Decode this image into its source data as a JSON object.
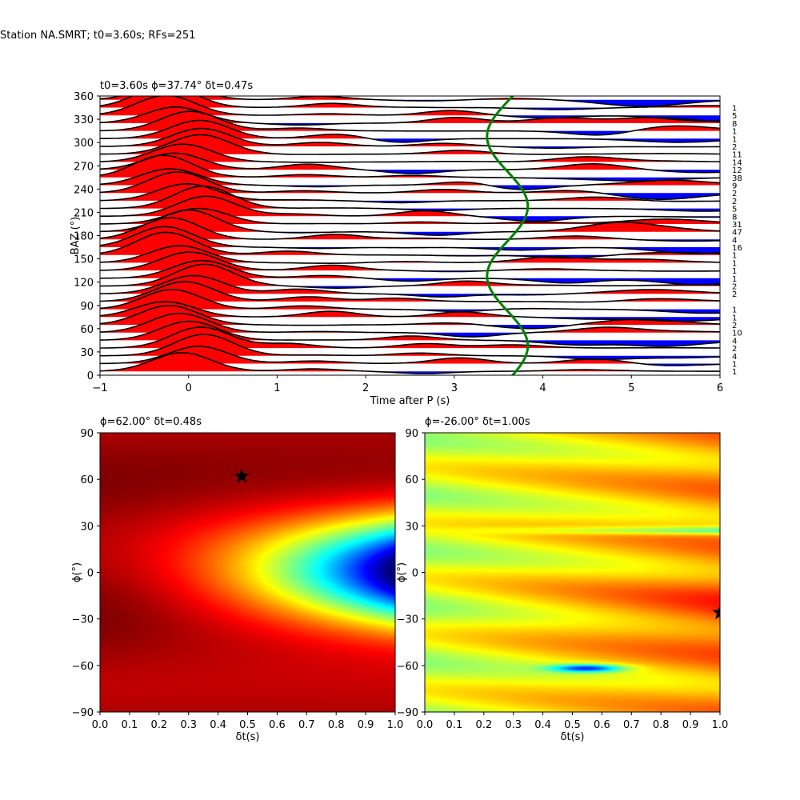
{
  "figure": {
    "suptitle": "Station NA.SMRT; t0=3.60s; RFs=251"
  },
  "chart_data": [
    {
      "type": "line",
      "title": "t0=3.60s ϕ=37.74° δt=0.47s",
      "xlabel": "Time after P (s)",
      "ylabel": "BAZ (°)",
      "xlim": [
        -1,
        6
      ],
      "ylim": [
        0,
        360
      ],
      "xticks": [
        "−1",
        "0",
        "1",
        "2",
        "3",
        "4",
        "5",
        "6"
      ],
      "yticks": [
        "0",
        "30",
        "60",
        "90",
        "120",
        "150",
        "180",
        "210",
        "240",
        "270",
        "300",
        "330",
        "360"
      ],
      "fill_positive_color": "#ff0000",
      "fill_negative_color": "#0000ff",
      "trace_color": "#000000",
      "curve_color": "#008000",
      "baz_bins": [
        5,
        15,
        25,
        35,
        45,
        55,
        65,
        75,
        85,
        95,
        105,
        115,
        125,
        135,
        145,
        155,
        165,
        175,
        185,
        195,
        205,
        215,
        225,
        235,
        245,
        255,
        265,
        275,
        285,
        295,
        305,
        315,
        325,
        335,
        345,
        355
      ],
      "rf_counts": [
        "1",
        "1",
        "4",
        "2",
        "4",
        "10",
        "2",
        "1",
        "1",
        "",
        "2",
        "2",
        "1",
        "1",
        "1",
        "1",
        "16",
        "4",
        "47",
        "31",
        "8",
        "5",
        "2",
        "2",
        "9",
        "38",
        "12",
        "14",
        "11",
        "2",
        "1",
        "1",
        "8",
        "5",
        "1",
        ""
      ],
      "t0_curve": {
        "t0": 3.6,
        "amplitude": 0.23,
        "phi_deg": 37.74
      },
      "grid": false
    },
    {
      "type": "heatmap",
      "title": "ϕ=62.00° δt=0.48s",
      "xlabel": "δt(s)",
      "ylabel": "ϕ(°)",
      "xlim": [
        0.0,
        1.0
      ],
      "ylim": [
        -90,
        90
      ],
      "xticks": [
        "0.0",
        "0.1",
        "0.2",
        "0.3",
        "0.4",
        "0.5",
        "0.6",
        "0.7",
        "0.8",
        "0.9",
        "1.0"
      ],
      "yticks": [
        "−90",
        "−60",
        "−30",
        "0",
        "30",
        "60",
        "90"
      ],
      "colormap": "jet",
      "best": {
        "dt": 0.48,
        "phi": 62.0
      },
      "marker_color": "#000000"
    },
    {
      "type": "heatmap",
      "title": "ϕ=-26.00° δt=1.00s",
      "xlabel": "δt(s)",
      "ylabel": "ϕ(°)",
      "xlim": [
        0.0,
        1.0
      ],
      "ylim": [
        -90,
        90
      ],
      "xticks": [
        "0.0",
        "0.1",
        "0.2",
        "0.3",
        "0.4",
        "0.5",
        "0.6",
        "0.7",
        "0.8",
        "0.9",
        "1.0"
      ],
      "yticks": [
        "−90",
        "−60",
        "−30",
        "0",
        "30",
        "60",
        "90"
      ],
      "colormap": "jet",
      "best": {
        "dt": 1.0,
        "phi": -26.0
      },
      "marker_color": "#000000"
    }
  ]
}
